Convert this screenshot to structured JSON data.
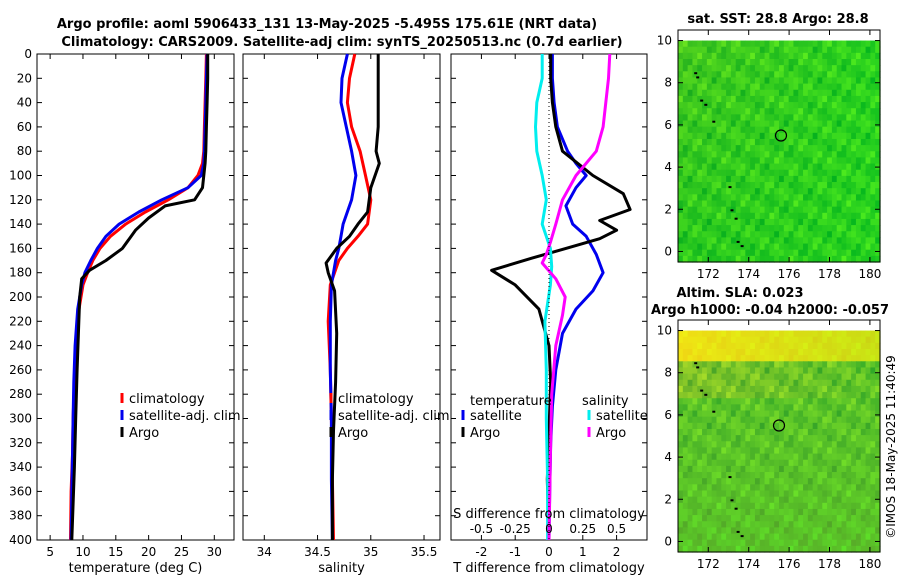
{
  "header": {
    "title_line1": "Argo profile: aoml 5906433_131 13-May-2025 -5.495S 175.61E (NRT data)",
    "title_line2": "Climatology: CARS2009. Satellite-adj clim: synTS_20250513.nc (0.7d earlier)"
  },
  "colors": {
    "climatology": "#ff0000",
    "satellite": "#0000ee",
    "argo": "#000000",
    "salinity_diff": "#ff00ff",
    "salinity_sat": "#00eeee"
  },
  "chart_data": [
    {
      "type": "line",
      "id": "temperature",
      "xlabel": "temperature (deg C)",
      "xlim": [
        3,
        33
      ],
      "xticks": [
        5,
        10,
        15,
        20,
        25,
        30
      ],
      "ylim": [
        0,
        400
      ],
      "yticks": [
        0,
        20,
        40,
        60,
        80,
        100,
        120,
        140,
        160,
        180,
        200,
        220,
        240,
        260,
        280,
        300,
        320,
        340,
        360,
        380,
        400
      ],
      "legend": [
        "climatology",
        "satellite-adj. clim",
        "Argo"
      ],
      "series": [
        {
          "name": "climatology",
          "x": [
            28.8,
            28.7,
            28.6,
            28.5,
            28.4,
            28.2,
            27.5,
            26,
            23,
            19.5,
            16.5,
            14.2,
            12.6,
            11.5,
            10.7,
            10.0,
            9.4,
            9.0,
            8.7,
            8.5,
            8.4,
            8.2,
            8.1
          ],
          "y": [
            0,
            20,
            40,
            60,
            80,
            90,
            100,
            110,
            120,
            130,
            140,
            150,
            160,
            170,
            180,
            190,
            210,
            240,
            270,
            300,
            330,
            360,
            400
          ]
        },
        {
          "name": "satellite-adj. clim",
          "x": [
            28.9,
            28.8,
            28.7,
            28.6,
            28.5,
            28.4,
            28.0,
            26.0,
            22.0,
            18.5,
            15.5,
            13.5,
            12.2,
            11.2,
            10.3,
            9.8,
            9.2,
            8.8,
            8.6,
            8.5,
            8.4,
            8.3,
            8.2
          ],
          "y": [
            0,
            20,
            40,
            60,
            80,
            90,
            100,
            110,
            120,
            130,
            140,
            150,
            160,
            170,
            180,
            190,
            210,
            240,
            270,
            300,
            330,
            360,
            400
          ]
        },
        {
          "name": "Argo",
          "x": [
            29.0,
            29.0,
            28.9,
            28.8,
            28.7,
            28.6,
            28.4,
            28.2,
            27.0,
            22.5,
            20.0,
            18.0,
            16.0,
            13.5,
            11.0,
            9.8,
            9.5,
            9.3,
            9.1,
            8.9,
            8.7,
            8.5,
            8.3
          ],
          "y": [
            0,
            20,
            40,
            60,
            80,
            90,
            100,
            110,
            120,
            125,
            135,
            145,
            160,
            170,
            178,
            185,
            200,
            230,
            260,
            300,
            340,
            370,
            400
          ]
        }
      ]
    },
    {
      "type": "line",
      "id": "salinity",
      "xlabel": "salinity",
      "xlim": [
        33.8,
        35.65
      ],
      "xticks": [
        34,
        34.5,
        35,
        35.5
      ],
      "legend": [
        "climatology",
        "satellite-adj. clim",
        "Argo"
      ],
      "series": [
        {
          "name": "climatology",
          "x": [
            34.85,
            34.8,
            34.78,
            34.82,
            34.9,
            34.95,
            35.0,
            34.97,
            34.88,
            34.78,
            34.7,
            34.62,
            34.6,
            34.62,
            34.63,
            34.64,
            34.65
          ],
          "y": [
            0,
            20,
            40,
            60,
            80,
            100,
            120,
            140,
            150,
            160,
            170,
            190,
            220,
            260,
            300,
            350,
            400
          ]
        },
        {
          "name": "satellite-adj. clim",
          "x": [
            34.78,
            34.73,
            34.72,
            34.77,
            34.82,
            34.86,
            34.82,
            34.74,
            34.72,
            34.7,
            34.67,
            34.63,
            34.62,
            34.62,
            34.63,
            34.63,
            34.64
          ],
          "y": [
            0,
            20,
            40,
            60,
            80,
            100,
            120,
            140,
            150,
            160,
            170,
            190,
            220,
            260,
            300,
            350,
            400
          ]
        },
        {
          "name": "Argo",
          "x": [
            35.07,
            35.07,
            35.07,
            35.07,
            35.05,
            35.08,
            35.0,
            34.97,
            34.88,
            34.8,
            34.68,
            34.58,
            34.6,
            34.66,
            34.68,
            34.67,
            34.65,
            34.64,
            34.64
          ],
          "y": [
            0,
            20,
            40,
            60,
            80,
            90,
            110,
            130,
            140,
            150,
            160,
            172,
            180,
            195,
            230,
            270,
            310,
            350,
            400
          ]
        }
      ]
    },
    {
      "type": "line",
      "id": "difference",
      "xlabel": "T difference from climatology",
      "xlabel_top": "S difference from climatology",
      "xlim": [
        -2.9,
        2.9
      ],
      "xticks": [
        -2,
        -1,
        0,
        1,
        2
      ],
      "s_ticks": [
        -0.5,
        -0.25,
        0,
        0.25,
        0.5
      ],
      "legend_temperature": [
        "temperature",
        "satellite",
        "Argo"
      ],
      "legend_salinity": [
        "salinity",
        "satellite",
        "Argo"
      ],
      "series": [
        {
          "name": "T satellite",
          "x": [
            0.1,
            0.1,
            0.15,
            0.25,
            0.55,
            0.8,
            1.1,
            0.8,
            0.5,
            0.7,
            1.1,
            1.4,
            1.6,
            1.3,
            0.8,
            0.4,
            0.2,
            0.1,
            0.05,
            0.02,
            0.0
          ],
          "y": [
            0,
            20,
            40,
            60,
            80,
            90,
            100,
            110,
            125,
            140,
            150,
            165,
            180,
            195,
            210,
            230,
            260,
            290,
            320,
            360,
            400
          ]
        },
        {
          "name": "T Argo",
          "x": [
            0.05,
            0.05,
            0.1,
            0.2,
            0.4,
            1.3,
            2.2,
            2.4,
            1.5,
            2.0,
            1.5,
            0.5,
            -0.5,
            -1.7,
            -1.0,
            -0.3,
            0.0,
            0.05,
            0.0,
            -0.05,
            0.0
          ],
          "y": [
            0,
            20,
            40,
            60,
            80,
            100,
            115,
            128,
            137,
            145,
            152,
            160,
            168,
            178,
            190,
            210,
            240,
            270,
            310,
            350,
            400
          ]
        },
        {
          "name": "S satellite",
          "x": [
            -0.05,
            -0.05,
            -0.09,
            -0.1,
            -0.09,
            -0.05,
            -0.02,
            -0.05,
            -0.02,
            0.01,
            0.02,
            0.01,
            -0.03,
            -0.02,
            -0.02,
            -0.01,
            -0.01
          ],
          "y": [
            0,
            20,
            40,
            60,
            80,
            100,
            120,
            140,
            150,
            160,
            175,
            190,
            220,
            260,
            300,
            350,
            400
          ]
        },
        {
          "name": "S Argo",
          "x": [
            0.45,
            0.44,
            0.42,
            0.4,
            0.35,
            0.2,
            0.1,
            0.05,
            0.01,
            -0.02,
            -0.05,
            0.05,
            0.12,
            0.1,
            0.05,
            0.02,
            0.01,
            0.0
          ],
          "y": [
            0,
            20,
            40,
            60,
            80,
            100,
            120,
            140,
            155,
            165,
            172,
            185,
            200,
            215,
            240,
            280,
            330,
            400
          ]
        }
      ]
    },
    {
      "type": "heatmap",
      "id": "sst_map",
      "title": "sat. SST: 28.8 Argo: 28.8",
      "xlim": [
        170.5,
        180.5
      ],
      "ylim": [
        -0.5,
        10.5
      ],
      "xticks": [
        172,
        174,
        176,
        178,
        180
      ],
      "yticks": [
        0,
        2,
        4,
        6,
        8,
        10
      ],
      "float_position": [
        175.6,
        5.5
      ]
    },
    {
      "type": "heatmap",
      "id": "sla_map",
      "title_line1": "Altim. SLA: 0.023",
      "title_line2": "Argo h1000: -0.04 h2000: -0.057",
      "xlim": [
        170.5,
        180.5
      ],
      "ylim": [
        -0.5,
        10.5
      ],
      "xticks": [
        172,
        174,
        176,
        178,
        180
      ],
      "yticks": [
        0,
        2,
        4,
        6,
        8,
        10
      ],
      "float_position": [
        175.5,
        5.5
      ]
    }
  ],
  "footer": {
    "credit": "©IMOS 18-May-2025 11:40:49"
  }
}
